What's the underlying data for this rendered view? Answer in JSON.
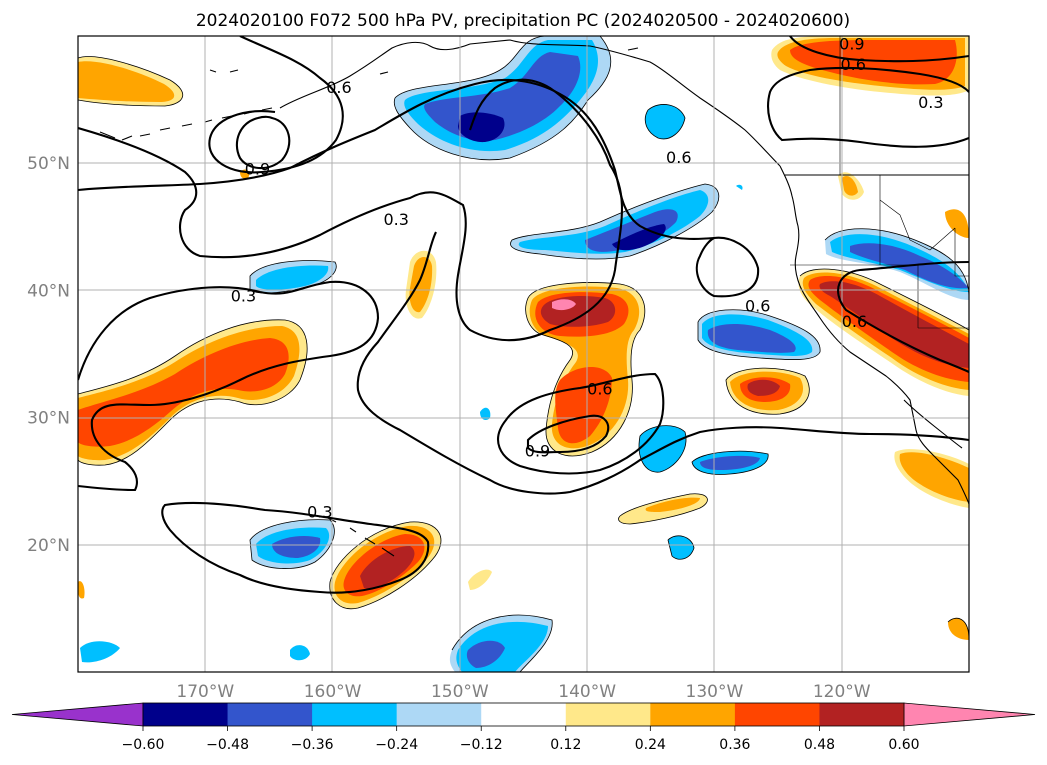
{
  "title": "2024020100 F072 500 hPa PV, precipitation PC (2024020500 - 2024020600)",
  "map": {
    "projection": "PlateCarree",
    "lon_range": [
      -180,
      -110
    ],
    "lat_range": [
      10,
      60
    ],
    "gridlines": true,
    "lon_ticks": [
      {
        "value": -170,
        "label": "170°W"
      },
      {
        "value": -160,
        "label": "160°W"
      },
      {
        "value": -150,
        "label": "150°W"
      },
      {
        "value": -140,
        "label": "140°W"
      },
      {
        "value": -130,
        "label": "130°W"
      },
      {
        "value": -120,
        "label": "120°W"
      }
    ],
    "lat_ticks": [
      {
        "value": 50,
        "label": "50°N"
      },
      {
        "value": 40,
        "label": "40°N"
      },
      {
        "value": 30,
        "label": "30°N"
      },
      {
        "value": 20,
        "label": "20°N"
      }
    ],
    "coastline_color": "#000000"
  },
  "contour_labels": [
    {
      "text": "0.6",
      "lon": -159.5,
      "lat": 56.0
    },
    {
      "text": "0.9",
      "lon": -165.9,
      "lat": 49.6
    },
    {
      "text": "0.3",
      "lon": -155.0,
      "lat": 45.6
    },
    {
      "text": "0.3",
      "lon": -167.0,
      "lat": 39.6
    },
    {
      "text": "0.6",
      "lon": -132.8,
      "lat": 50.5
    },
    {
      "text": "0.9",
      "lon": -119.2,
      "lat": 59.4
    },
    {
      "text": "0.6",
      "lon": -119.1,
      "lat": 57.8
    },
    {
      "text": "0.3",
      "lon": -113.0,
      "lat": 54.8
    },
    {
      "text": "0.6",
      "lon": -126.6,
      "lat": 38.8
    },
    {
      "text": "0.6",
      "lon": -119.0,
      "lat": 37.6
    },
    {
      "text": "0.6",
      "lon": -139.0,
      "lat": 32.3
    },
    {
      "text": "0.9",
      "lon": -143.9,
      "lat": 27.4
    },
    {
      "text": "0.3",
      "lon": -161.0,
      "lat": 22.6
    }
  ],
  "colorbar": {
    "orientation": "horizontal",
    "extend": "both",
    "levels": [
      -0.6,
      -0.48,
      -0.36,
      -0.24,
      -0.12,
      0.12,
      0.24,
      0.36,
      0.48,
      0.6
    ],
    "tick_labels": [
      "−0.60",
      "−0.48",
      "−0.36",
      "−0.24",
      "−0.12",
      "0.12",
      "0.24",
      "0.36",
      "0.48",
      "0.60"
    ],
    "colors": [
      "#9932cc",
      "#00008b",
      "#3355cc",
      "#00bfff",
      "#add8f5",
      "#ffffff",
      "#ffe88a",
      "#ffa500",
      "#ff4500",
      "#b22222",
      "#ff85b0"
    ]
  }
}
